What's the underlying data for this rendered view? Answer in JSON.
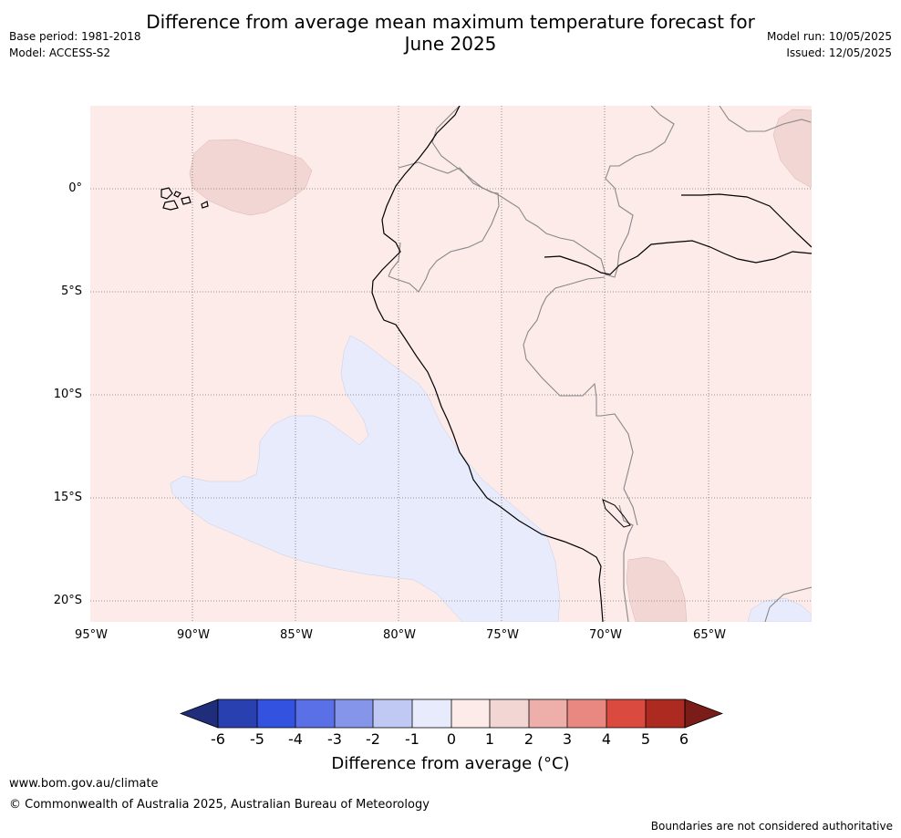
{
  "header": {
    "title_line1": "Difference from average mean maximum temperature forecast for",
    "title_line2": "June 2025",
    "base_period": "Base period: 1981-2018",
    "model": "Model: ACCESS-S2",
    "model_run": "Model run: 10/05/2025",
    "issued": "Issued: 12/05/2025"
  },
  "map": {
    "lat_labels": [
      "0°",
      "5°S",
      "10°S",
      "15°S",
      "20°S"
    ],
    "lon_labels": [
      "95°W",
      "90°W",
      "85°W",
      "80°W",
      "75°W",
      "70°W",
      "65°W"
    ],
    "colors": {
      "plus_0_1": "#fcebe9",
      "plus_1_2": "#f2d6d4",
      "minus_1_0": "#e8ebfb",
      "coast": "#000000",
      "borders": "#888888",
      "grid": "#777777"
    }
  },
  "colorbar": {
    "ticks": [
      "-6",
      "-5",
      "-4",
      "-3",
      "-2",
      "-1",
      "0",
      "1",
      "2",
      "3",
      "4",
      "5",
      "6"
    ],
    "colors": [
      "#1f2d7a",
      "#2840b0",
      "#3452e0",
      "#5a70e6",
      "#8595ea",
      "#c0c8f4",
      "#e8ebfb",
      "#fcebe9",
      "#f2d6d4",
      "#eeaea9",
      "#e88880",
      "#db4a3f",
      "#ad2a21",
      "#7a1c18"
    ],
    "label": "Difference from average ($^\\circ$C)",
    "label_display": "Difference from average (°C)"
  },
  "footer": {
    "url": "www.bom.gov.au/climate",
    "copyright": "© Commonwealth of Australia 2025, Australian Bureau of Meteorology",
    "disclaimer": "Boundaries are not considered authoritative"
  }
}
